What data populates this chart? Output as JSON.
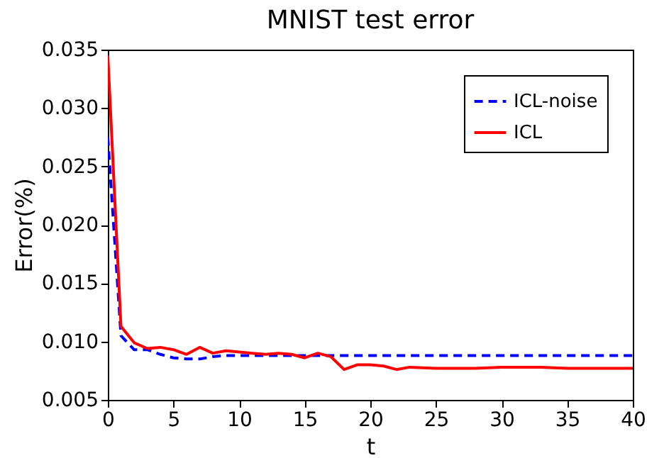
{
  "chart_data": {
    "type": "line",
    "title": "MNIST test error",
    "xlabel": "t",
    "ylabel": "Error(%)",
    "xlim": [
      0,
      40
    ],
    "ylim": [
      0.005,
      0.035
    ],
    "xticks": [
      0,
      5,
      10,
      15,
      20,
      25,
      30,
      35,
      40
    ],
    "yticks": [
      {
        "value": 0.005,
        "label": "0.005"
      },
      {
        "value": 0.01,
        "label": "0.010"
      },
      {
        "value": 0.015,
        "label": "0.015"
      },
      {
        "value": 0.02,
        "label": "0.020"
      },
      {
        "value": 0.025,
        "label": "0.025"
      },
      {
        "value": 0.03,
        "label": "0.030"
      },
      {
        "value": 0.035,
        "label": "0.035"
      }
    ],
    "grid": false,
    "legend": "top right",
    "series": [
      {
        "name": "ICL-noise",
        "color": "#0000ff",
        "line_style": "dashed",
        "x": [
          0,
          1,
          2,
          3,
          4,
          5,
          6,
          7,
          8,
          9,
          10,
          15,
          20,
          25,
          30,
          35,
          40
        ],
        "values": [
          0.0275,
          0.0105,
          0.0093,
          0.0093,
          0.0089,
          0.0086,
          0.0085,
          0.0085,
          0.0087,
          0.0088,
          0.0088,
          0.0088,
          0.0088,
          0.0088,
          0.0088,
          0.0088,
          0.0088
        ]
      },
      {
        "name": "ICL",
        "color": "#ff0000",
        "line_style": "solid",
        "x": [
          0,
          1,
          2,
          3,
          4,
          5,
          6,
          7,
          8,
          9,
          10,
          11,
          12,
          13,
          14,
          15,
          16,
          17,
          18,
          19,
          20,
          21,
          22,
          23,
          25,
          28,
          30,
          33,
          35,
          40
        ],
        "values": [
          0.0345,
          0.0113,
          0.0099,
          0.0094,
          0.0095,
          0.0093,
          0.0089,
          0.0095,
          0.009,
          0.0092,
          0.0091,
          0.009,
          0.0089,
          0.009,
          0.0089,
          0.0086,
          0.009,
          0.0087,
          0.0076,
          0.008,
          0.008,
          0.0079,
          0.0076,
          0.0078,
          0.0077,
          0.0077,
          0.0078,
          0.0078,
          0.0077,
          0.0077
        ]
      }
    ]
  }
}
